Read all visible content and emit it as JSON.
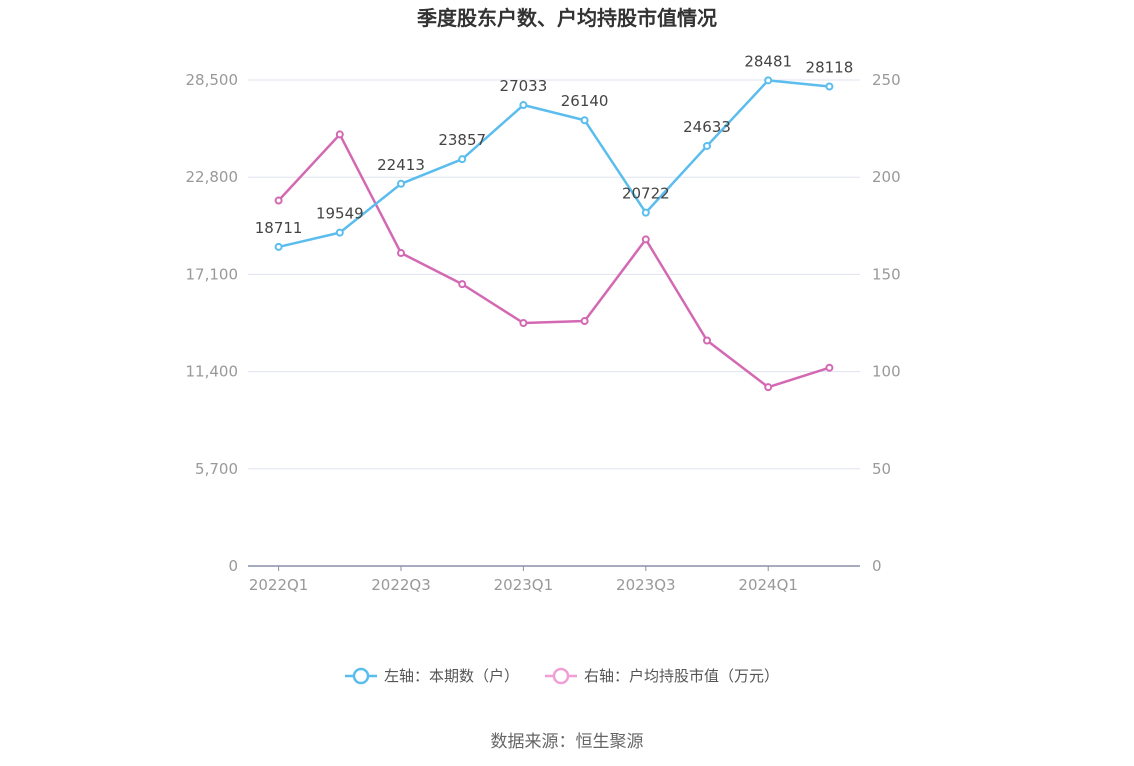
{
  "chart_data": {
    "type": "line",
    "title": "季度股东户数、户均持股市值情况",
    "categories": [
      "2022Q1",
      "2022Q2",
      "2022Q3",
      "2022Q4",
      "2023Q1",
      "2023Q2",
      "2023Q3",
      "2023Q4",
      "2024Q1",
      "2024Q2"
    ],
    "x_tick_labels": [
      "2022Q1",
      "2022Q3",
      "2023Q1",
      "2023Q3",
      "2024Q1"
    ],
    "left_axis": {
      "ylim": [
        0,
        28500
      ],
      "ticks": [
        "0",
        "5,700",
        "11,400",
        "17,100",
        "22,800",
        "28,500"
      ]
    },
    "right_axis": {
      "ylim": [
        0,
        250
      ],
      "ticks": [
        "0",
        "50",
        "100",
        "150",
        "200",
        "250"
      ]
    },
    "series": [
      {
        "name": "左轴：本期数（户）",
        "axis": "left",
        "color": "#5bbdee",
        "values": [
          18711,
          19549,
          22413,
          23857,
          27033,
          26140,
          20722,
          24633,
          28481,
          28118
        ],
        "labels": [
          "18711",
          "19549",
          "22413",
          "23857",
          "27033",
          "26140",
          "20722",
          "24633",
          "28481",
          "28118"
        ]
      },
      {
        "name": "右轴：户均持股市值（万元）",
        "axis": "right",
        "color": "#d369b3",
        "values": [
          188,
          222,
          161,
          145,
          125,
          126,
          168,
          116,
          92,
          102
        ]
      }
    ],
    "grid": true,
    "legend_position": "bottom"
  },
  "source": "数据来源：恒生聚源"
}
